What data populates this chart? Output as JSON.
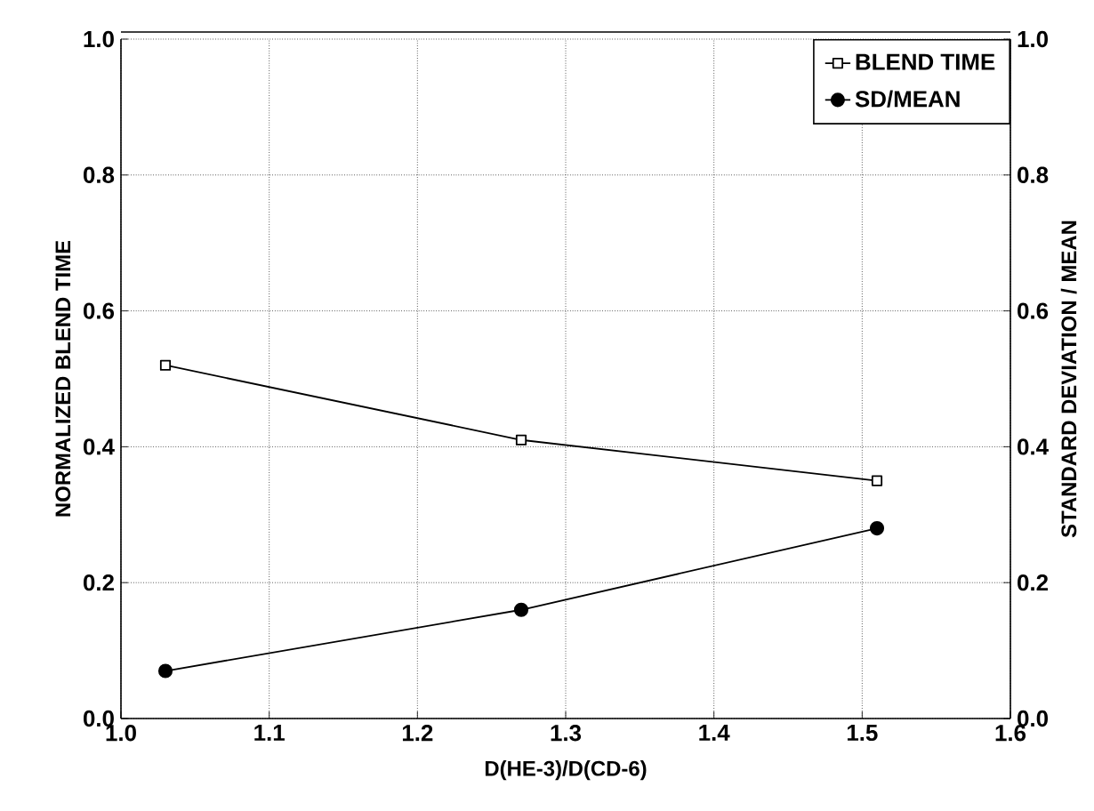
{
  "chart_data": {
    "type": "line",
    "xlabel": "D(HE-3)/D(CD-6)",
    "ylabel": "NORMALIZED BLEND TIME",
    "y2label": "STANDARD DEVIATION / MEAN",
    "x": [
      1.03,
      1.27,
      1.51
    ],
    "series": [
      {
        "name": "BLEND TIME",
        "color": "#000000",
        "marker": "square",
        "values": [
          0.52,
          0.41,
          0.35
        ]
      },
      {
        "name": "SD/MEAN",
        "color": "#000000",
        "marker": "circle",
        "axis": "y2",
        "values": [
          0.07,
          0.16,
          0.28
        ]
      }
    ],
    "xlim": [
      1.0,
      1.6
    ],
    "ylim": [
      0.0,
      1.0
    ],
    "y2lim": [
      0.0,
      1.0
    ],
    "xticks": [
      {
        "value": 1.0,
        "label": "1.0"
      },
      1.1,
      1.2,
      1.3,
      1.4,
      1.5,
      1.6
    ],
    "yticks": [
      {
        "value": 0.0,
        "label": "0.0"
      },
      0.2,
      0.4,
      0.6,
      0.8,
      {
        "value": 1.0,
        "label": "1.0"
      }
    ],
    "y2ticks": [
      {
        "value": 0.0,
        "label": "0.0"
      },
      0.2,
      0.4,
      0.6,
      0.8,
      {
        "value": 1.0,
        "label": "1.0"
      }
    ],
    "grid": true,
    "legend": "top right",
    "line_style": "solid"
  }
}
